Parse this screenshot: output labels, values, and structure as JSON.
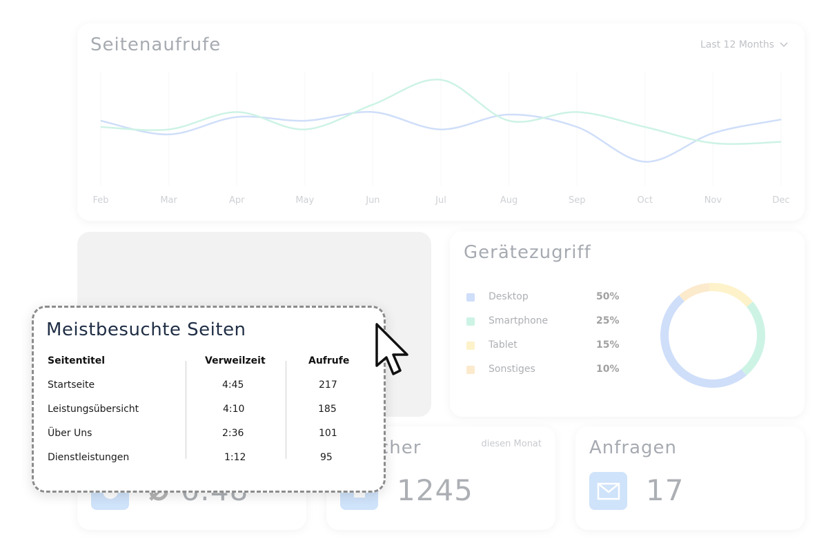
{
  "chart_card": {
    "title": "Seitenaufrufe",
    "range_select": "Last 12 Months"
  },
  "chart_data": {
    "type": "line",
    "x": [
      "Feb",
      "Mar",
      "Apr",
      "May",
      "Jun",
      "Jul",
      "Aug",
      "Sep",
      "Oct",
      "Nov",
      "Dec"
    ],
    "series": [
      {
        "color": "#a9c4f5",
        "values": [
          55,
          44,
          58,
          55,
          62,
          48,
          60,
          50,
          22,
          45,
          56
        ]
      },
      {
        "color": "#a6ead0",
        "values": [
          50,
          48,
          62,
          48,
          68,
          88,
          55,
          62,
          50,
          37,
          38
        ]
      }
    ],
    "ylim": [
      0,
      100
    ],
    "grid": "vertical"
  },
  "device_card": {
    "title": "Gerätezugriff",
    "items": [
      {
        "label": "Desktop",
        "value": "50%",
        "share": 50,
        "color": "#a9c4f5"
      },
      {
        "label": "Smartphone",
        "value": "25%",
        "share": 25,
        "color": "#a6ead0"
      },
      {
        "label": "Tablet",
        "value": "15%",
        "share": 15,
        "color": "#fde8a0"
      },
      {
        "label": "Sonstiges",
        "value": "10%",
        "share": 10,
        "color": "#fbd9a6"
      }
    ]
  },
  "kpi_cards": [
    {
      "title": "",
      "value": "6:48",
      "icon": "clock-icon"
    },
    {
      "title": "cher",
      "subtitle": "diesen Monat",
      "value": "1245",
      "icon": "calendar-icon"
    },
    {
      "title": "Anfragen",
      "value": "17",
      "icon": "mail-icon"
    }
  ],
  "popup": {
    "title": "Meistbesuchte Seiten",
    "headers": [
      "Seitentitel",
      "Verweilzeit",
      "Aufrufe"
    ],
    "rows": [
      [
        "Startseite",
        "4:45",
        "217"
      ],
      [
        "Leistungsübersicht",
        "4:10",
        "185"
      ],
      [
        "Über Uns",
        "2:36",
        "101"
      ],
      [
        "Dienstleistungen",
        "1:12",
        "95"
      ]
    ]
  },
  "colors": {
    "accent_blue": "#a9c4f5",
    "accent_green": "#a6ead0",
    "title_dark": "#1f2e45"
  }
}
